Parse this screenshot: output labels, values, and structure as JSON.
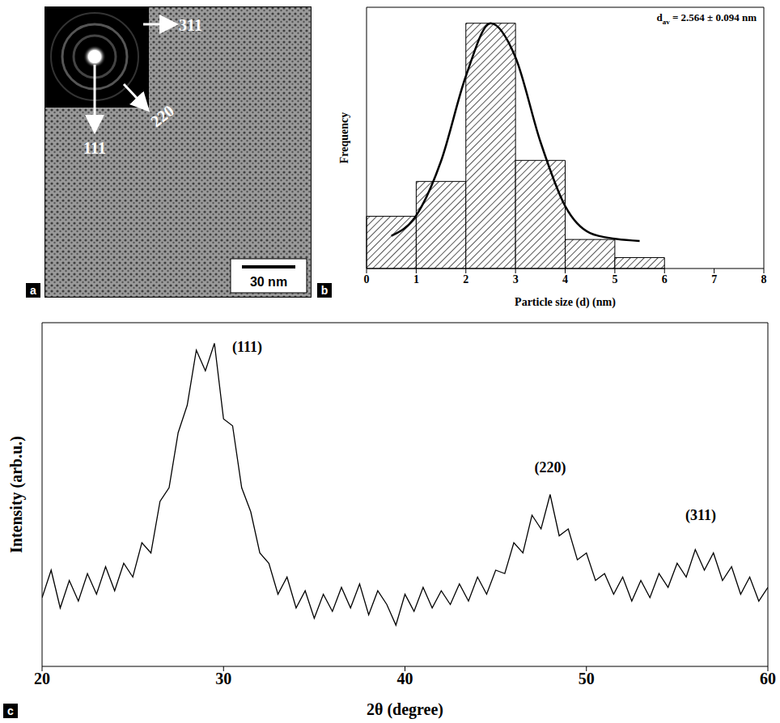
{
  "chart_data": [
    {
      "panel": "a",
      "type": "image",
      "scale_bar": "30 nm",
      "annotations": [
        "311",
        "220",
        "111"
      ]
    },
    {
      "panel": "b",
      "type": "histogram",
      "annotation": [
        "d",
        "av",
        " = 2.564 ± 0.094 nm"
      ],
      "x_label": "Particle size (d) (nm)",
      "y_label": "Frequency",
      "bins": [
        0,
        1,
        2,
        3,
        4,
        5,
        6
      ],
      "counts": [
        72,
        120,
        338,
        149,
        40,
        15
      ],
      "color": "#555555",
      "series": [
        {
          "type": "line",
          "color": "#000000",
          "x": [
            0.5,
            1,
            1.5,
            2,
            2.5,
            3,
            3.5,
            4,
            4.5,
            5,
            5.5
          ],
          "values": [
            45,
            73,
            148,
            265,
            338,
            291,
            175,
            86,
            49,
            41,
            38
          ]
        }
      ],
      "xlim": [
        0,
        8
      ],
      "xticks": [
        0,
        1,
        2,
        3,
        4,
        5,
        6,
        7,
        8
      ],
      "ylim": [
        0,
        360
      ],
      "tick_labels": "x"
    },
    {
      "panel": "c",
      "type": "line",
      "x_label": "2θ (degree)",
      "y_label": "Intensity (arb.u.)",
      "color": "#000000",
      "x": [
        20,
        20.5,
        21,
        21.5,
        22,
        22.5,
        23,
        23.5,
        24,
        24.5,
        25,
        25.5,
        26,
        26.5,
        27,
        27.5,
        28,
        28.5,
        29,
        29.5,
        30,
        30.5,
        31,
        31.5,
        32,
        32.5,
        33,
        33.5,
        34,
        34.5,
        35,
        35.5,
        36,
        36.5,
        37,
        37.5,
        38,
        38.5,
        39,
        39.5,
        40,
        40.5,
        41,
        41.5,
        42,
        42.5,
        43,
        43.5,
        44,
        44.5,
        45,
        45.5,
        46,
        46.5,
        47,
        47.5,
        48,
        48.5,
        49,
        49.5,
        50,
        50.5,
        51,
        51.5,
        52,
        52.5,
        53,
        53.5,
        54,
        54.5,
        55,
        55.5,
        56,
        56.5,
        57,
        57.5,
        58,
        58.5,
        59,
        59.5,
        60
      ],
      "values": [
        20,
        28,
        17,
        25,
        19,
        27,
        21,
        29,
        22,
        30,
        26,
        36,
        33,
        48,
        52,
        68,
        76,
        92,
        86,
        94,
        72,
        70,
        52,
        45,
        33,
        30,
        21,
        26,
        17,
        22,
        14,
        21,
        16,
        23,
        17,
        24,
        15,
        22,
        18,
        12,
        21,
        16,
        23,
        17,
        22,
        18,
        24,
        19,
        26,
        21,
        28,
        27,
        36,
        33,
        44,
        40,
        50,
        38,
        40,
        31,
        33,
        25,
        27,
        21,
        26,
        19,
        25,
        20,
        27,
        23,
        30,
        26,
        34,
        28,
        33,
        25,
        29,
        21,
        26,
        19,
        23
      ],
      "annotations": [
        {
          "text": "(111)",
          "x": 31.3,
          "y": 93
        },
        {
          "text": "(220)",
          "x": 48,
          "y": 58
        },
        {
          "text": "(311)",
          "x": 56.3,
          "y": 44
        }
      ],
      "xlim": [
        20,
        60
      ],
      "xticks": [
        20,
        30,
        40,
        50,
        60
      ],
      "ylim": [
        0,
        100
      ],
      "tick_labels": "x"
    }
  ]
}
